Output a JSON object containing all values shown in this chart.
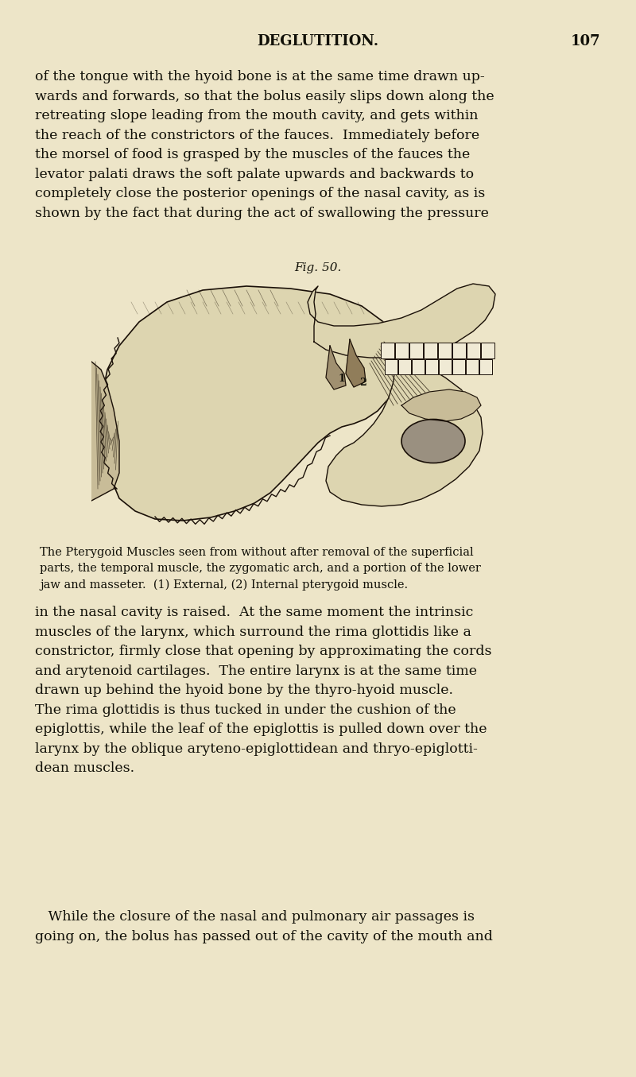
{
  "background_color": "#ede5c8",
  "body_color": "#111008",
  "header_title": "DEGLUTITION.",
  "header_page": "107",
  "fig_caption": "Fig. 50.",
  "caption_text": "The Pterygoid Muscles seen from without after removal of the superficial\nparts, the temporal muscle, the zygomatic arch, and a portion of the lower\njaw and masseter.  (1) External, (2) Internal pterygoid muscle.",
  "para1": "of the tongue with the hyoid bone is at the same time drawn up-\nwards and forwards, so that the bolus easily slips down along the\nretreating slope leading from the mouth cavity, and gets within\nthe reach of the constrictors of the fauces.  Immediately before\nthe morsel of food is grasped by the muscles of the fauces the\nlevator palati draws the soft palate upwards and backwards to\ncompletely close the posterior openings of the nasal cavity, as is\nshown by the fact that during the act of swallowing the pressure",
  "para2": "in the nasal cavity is raised.  At the same moment the intrinsic\nmuscles of the larynx, which surround the rima glottidis like a\nconstrictor, firmly close that opening by approximating the cords\nand arytenoid cartilages.  The entire larynx is at the same time\ndrawn up behind the hyoid bone by the thyro-hyoid muscle.\nThe rima glottidis is thus tucked in under the cushion of the\nepiglottis, while the leaf of the epiglottis is pulled down over the\nlarynx by the oblique aryteno-epiglottidean and thryo-epiglotti-\ndean muscles.",
  "para3": "   While the closure of the nasal and pulmonary air passages is\ngoing on, the bolus has passed out of the cavity of the mouth and"
}
